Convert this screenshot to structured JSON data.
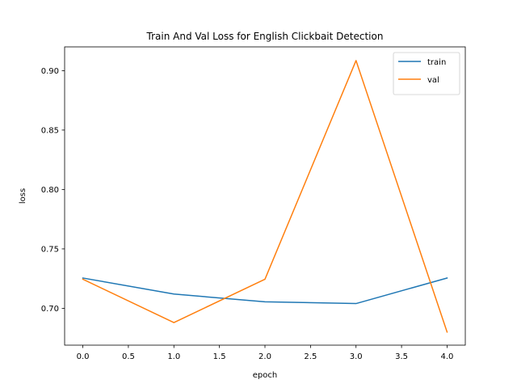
{
  "chart_data": {
    "type": "line",
    "title": "Train And Val Loss for English Clickbait Detection",
    "xlabel": "epoch",
    "ylabel": "loss",
    "x": [
      0,
      1,
      2,
      3,
      4
    ],
    "xlim": [
      -0.2,
      4.2
    ],
    "ylim": [
      0.669,
      0.92
    ],
    "xticks": [
      0.0,
      0.5,
      1.0,
      1.5,
      2.0,
      2.5,
      3.0,
      3.5,
      4.0
    ],
    "xtick_labels": [
      "0.0",
      "0.5",
      "1.0",
      "1.5",
      "2.0",
      "2.5",
      "3.0",
      "3.5",
      "4.0"
    ],
    "yticks": [
      0.7,
      0.75,
      0.8,
      0.85,
      0.9
    ],
    "ytick_labels": [
      "0.70",
      "0.75",
      "0.80",
      "0.85",
      "0.90"
    ],
    "grid": false,
    "legend_position": "top-right",
    "series": [
      {
        "name": "train",
        "color": "#1f77b4",
        "values": [
          0.7255,
          0.712,
          0.7055,
          0.704,
          0.7255
        ]
      },
      {
        "name": "val",
        "color": "#ff7f0e",
        "values": [
          0.7245,
          0.688,
          0.7245,
          0.9085,
          0.68
        ]
      }
    ]
  }
}
